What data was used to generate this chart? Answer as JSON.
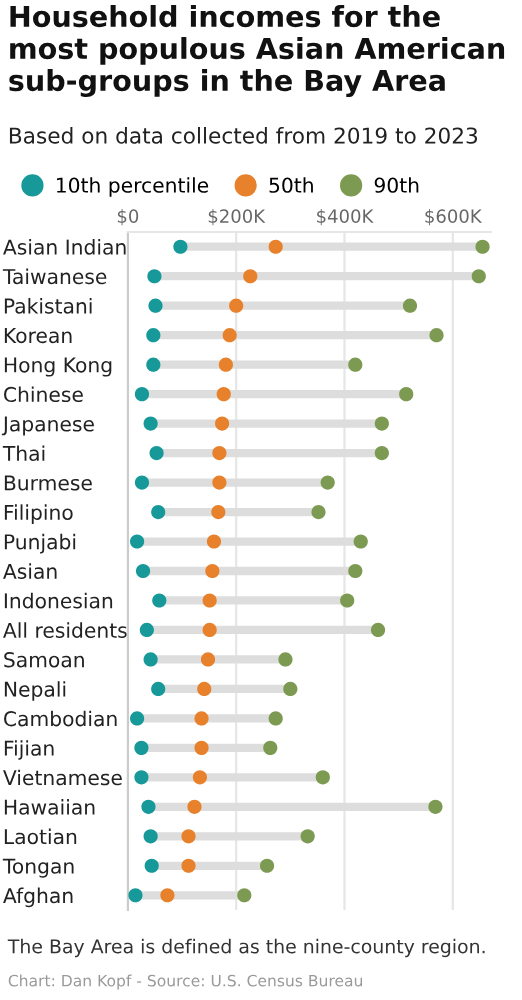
{
  "chart_data": {
    "type": "scatter",
    "orientation": "horizontal",
    "title": "Household incomes for the most populous Asian American sub-groups in the Bay Area",
    "subtitle": "Based on data collected from 2019 to 2023",
    "annotations": [
      "The Bay Area is defined as the nine-county region.",
      "Chart: Dan Kopf - Source: U.S. Census Bureau"
    ],
    "categories": [
      "Asian Indian",
      "Taiwanese",
      "Pakistani",
      "Korean",
      "Hong Kong",
      "Chinese",
      "Japanese",
      "Thai",
      "Burmese",
      "Filipino",
      "Punjabi",
      "Asian",
      "Indonesian",
      "All residents",
      "Samoan",
      "Nepali",
      "Cambodian",
      "Fijian",
      "Vietnamese",
      "Hawaiian",
      "Laotian",
      "Tongan",
      "Afghan"
    ],
    "series": [
      {
        "type": "bar",
        "color": "#dddddd",
        "base": [
          97,
          49,
          51,
          47,
          47,
          26,
          42,
          53,
          26,
          56,
          17,
          28,
          58,
          35,
          42,
          56,
          17,
          25,
          25,
          38,
          42,
          44,
          14
        ],
        "values": [
          558,
          599,
          470,
          523,
          373,
          488,
          427,
          416,
          343,
          296,
          413,
          392,
          347,
          427,
          249,
          244,
          256,
          238,
          335,
          530,
          290,
          213,
          201
        ]
      },
      {
        "name": "10th percentile",
        "color": "#17999a",
        "values": [
          97,
          49,
          51,
          47,
          47,
          26,
          42,
          53,
          26,
          56,
          17,
          28,
          58,
          35,
          42,
          56,
          17,
          25,
          25,
          38,
          42,
          44,
          14
        ]
      },
      {
        "name": "50th",
        "color": "#e8812b",
        "values": [
          273,
          226,
          200,
          188,
          181,
          177,
          174,
          169,
          169,
          167,
          159,
          156,
          151,
          151,
          148,
          141,
          136,
          136,
          133,
          123,
          112,
          112,
          73
        ]
      },
      {
        "name": "90th",
        "color": "#7d9a52",
        "values": [
          655,
          648,
          521,
          570,
          420,
          514,
          469,
          469,
          369,
          352,
          430,
          420,
          405,
          462,
          291,
          300,
          273,
          263,
          360,
          568,
          332,
          257,
          215
        ]
      }
    ],
    "xlim": [
      0,
      670
    ],
    "xticks": [
      {
        "value": 0,
        "label": "$0"
      },
      {
        "value": 200,
        "label": "$200K"
      },
      {
        "value": 400,
        "label": "$400K"
      },
      {
        "value": 600,
        "label": "$600K"
      }
    ],
    "grid": "x",
    "legend": "top left",
    "marker": "circle"
  }
}
